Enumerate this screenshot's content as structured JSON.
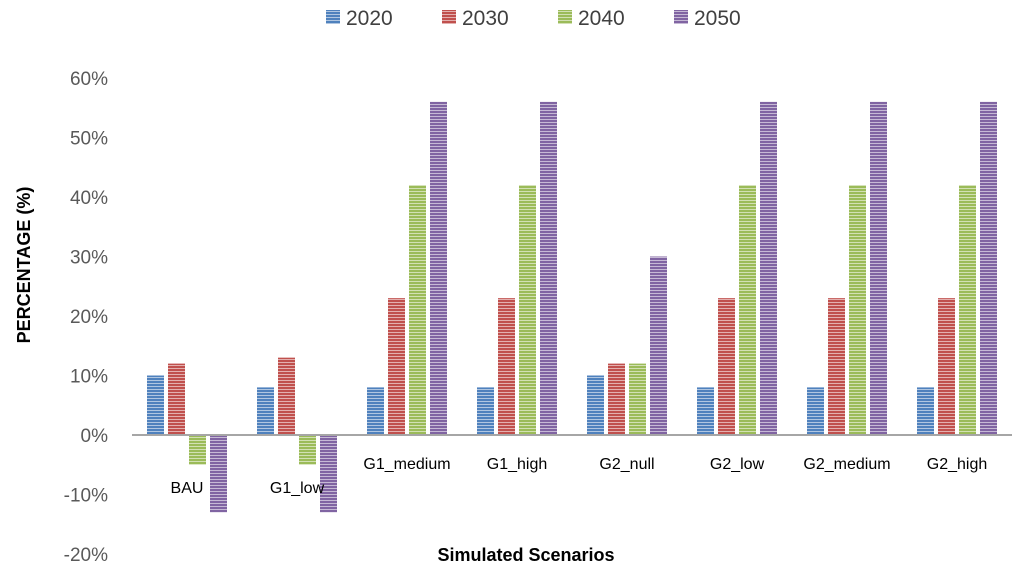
{
  "chart_data": {
    "type": "bar",
    "title": "",
    "xlabel": "Simulated Scenarios",
    "ylabel": "PERCENTAGE (%)",
    "ylim": [
      -0.2,
      0.6
    ],
    "y_ticks": [
      "-20%",
      "-10%",
      "0%",
      "10%",
      "20%",
      "30%",
      "40%",
      "50%",
      "60%"
    ],
    "y_tick_values": [
      -0.2,
      -0.1,
      0,
      0.1,
      0.2,
      0.3,
      0.4,
      0.5,
      0.6
    ],
    "categories": [
      "BAU",
      "G1_low",
      "G1_medium",
      "G1_high",
      "G2_null",
      "G2_low",
      "G2_medium",
      "G2_high"
    ],
    "series": [
      {
        "name": "2020",
        "color": "#4F81BD",
        "values": [
          0.1,
          0.08,
          0.08,
          0.08,
          0.1,
          0.08,
          0.08,
          0.08
        ]
      },
      {
        "name": "2030",
        "color": "#C0504D",
        "values": [
          0.12,
          0.13,
          0.23,
          0.23,
          0.12,
          0.23,
          0.23,
          0.23
        ]
      },
      {
        "name": "2040",
        "color": "#9BBB59",
        "values": [
          -0.05,
          -0.05,
          0.42,
          0.42,
          0.12,
          0.42,
          0.42,
          0.42
        ]
      },
      {
        "name": "2050",
        "color": "#8064A2",
        "values": [
          -0.13,
          -0.13,
          0.56,
          0.56,
          0.3,
          0.56,
          0.56,
          0.56
        ]
      }
    ],
    "legend_position": "top",
    "grid": false
  }
}
